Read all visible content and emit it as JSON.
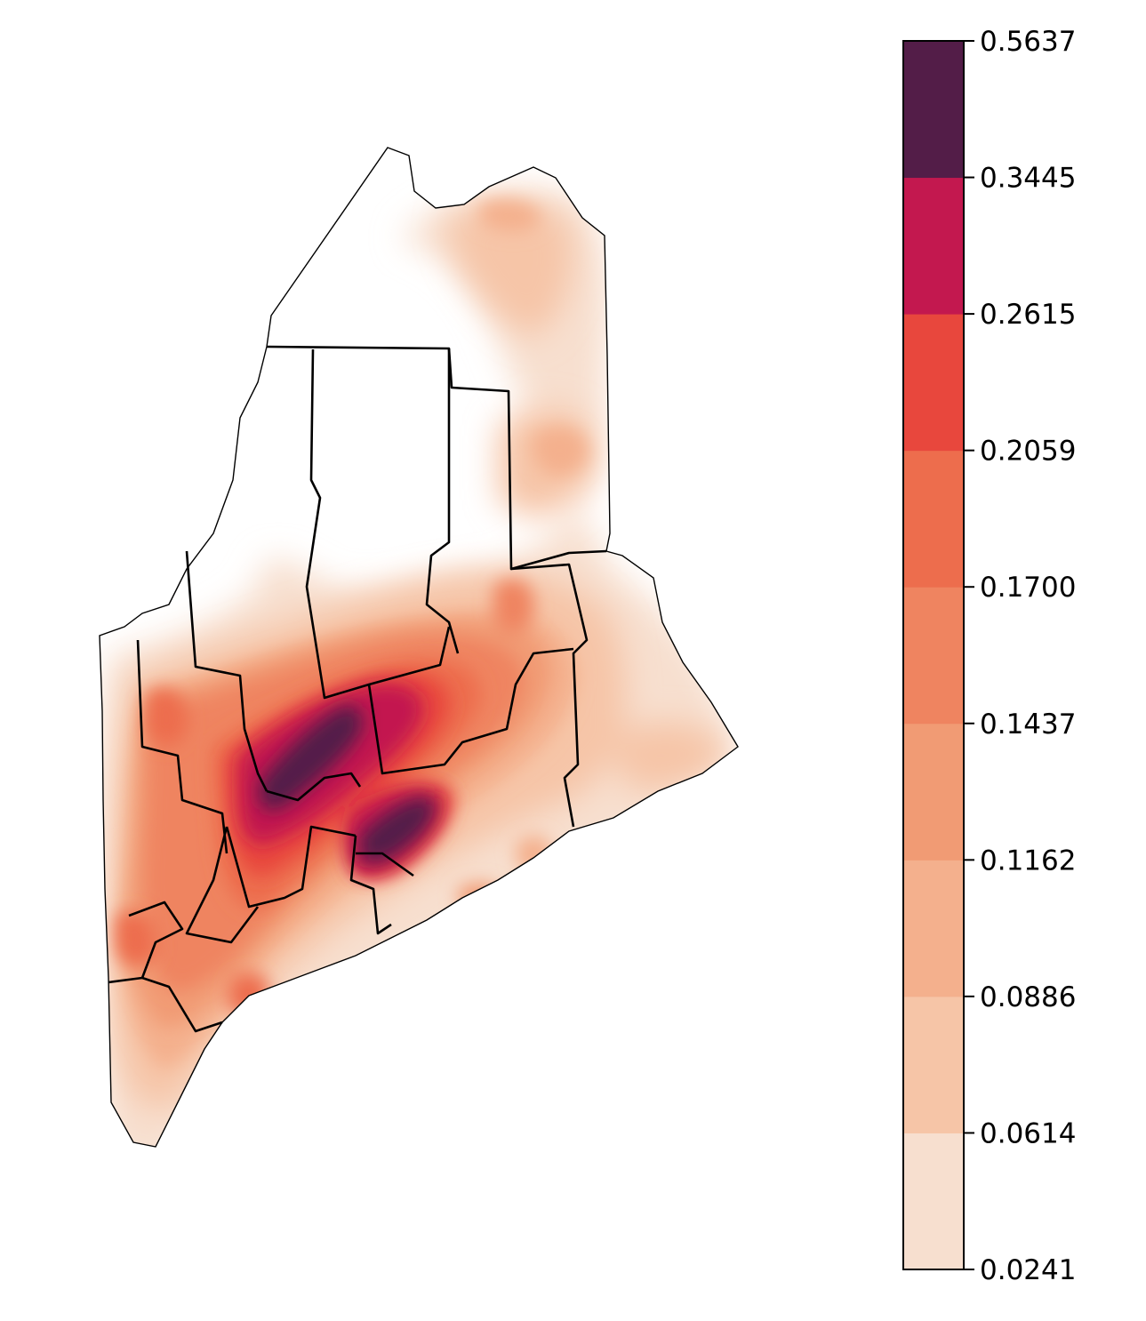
{
  "colorbar": {
    "ticks": [
      "0.5637",
      "0.3445",
      "0.2615",
      "0.2059",
      "0.1700",
      "0.1437",
      "0.1162",
      "0.0886",
      "0.0614",
      "0.0241"
    ],
    "levels": [
      0.0241,
      0.0614,
      0.0886,
      0.1162,
      0.1437,
      0.17,
      0.2059,
      0.2615,
      0.3445,
      0.5637
    ],
    "colors": [
      "#f7dfcf",
      "#f6c5a7",
      "#f4b08d",
      "#f19b74",
      "#ef8460",
      "#ed6d4d",
      "#e8473d",
      "#c3184f",
      "#531d48"
    ]
  },
  "map": {
    "outline_color": "#000000",
    "background": "#ffffff"
  }
}
